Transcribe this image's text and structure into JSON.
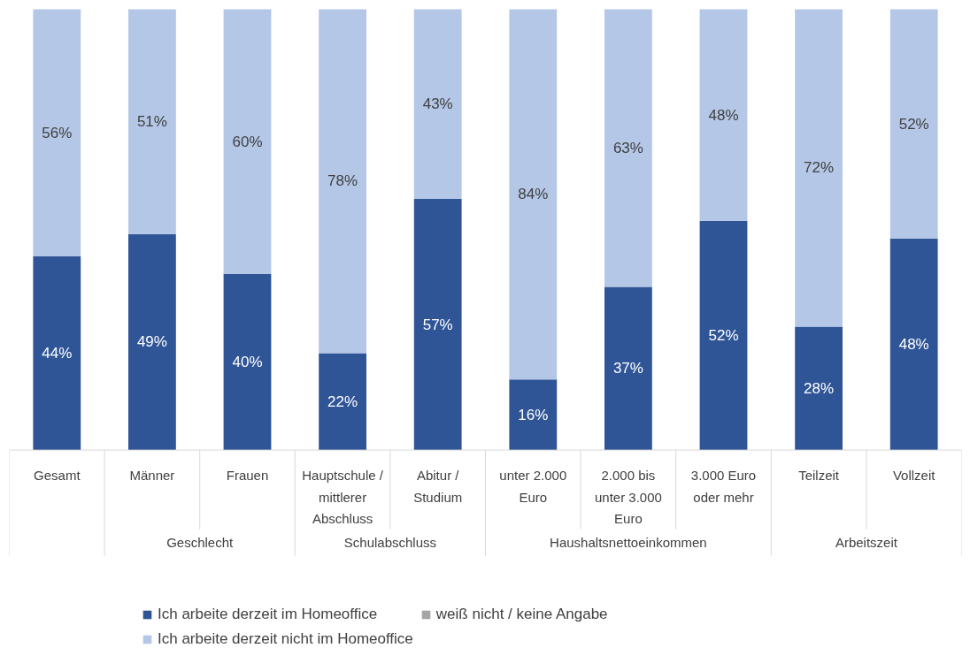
{
  "chart_data": {
    "type": "bar",
    "stacked": true,
    "legend": "bottom",
    "categories": [
      "Gesamt",
      "Männer",
      "Frauen",
      "Hauptschule / mittlerer Abschluss",
      "Abitur / Studium",
      "unter 2.000 Euro",
      "2.000 bis unter 3.000 Euro",
      "3.000 Euro oder mehr",
      "Teilzeit",
      "Vollzeit"
    ],
    "series": [
      {
        "name": "Ich arbeite derzeit im Homeoffice",
        "color": "#2f5597",
        "values": [
          44,
          49,
          40,
          22,
          57,
          16,
          37,
          52,
          28,
          48
        ],
        "value_labels": [
          "44%",
          "49%",
          "40%",
          "22%",
          "57%",
          "16%",
          "37%",
          "52%",
          "28%",
          "48%"
        ]
      },
      {
        "name": "Ich arbeite derzeit nicht im Homeoffice",
        "color": "#b4c7e7",
        "values": [
          56,
          51,
          60,
          78,
          43,
          84,
          63,
          48,
          72,
          52
        ],
        "value_labels": [
          "56%",
          "51%",
          "60%",
          "78%",
          "43%",
          "84%",
          "63%",
          "48%",
          "72%",
          "52%"
        ]
      },
      {
        "name": "weiß nicht / keine Angabe",
        "color": "#a5a5a5",
        "values": [
          0,
          0,
          0,
          0,
          0,
          0,
          0,
          0,
          0,
          0
        ],
        "value_labels": [
          null,
          null,
          null,
          null,
          null,
          null,
          null,
          null,
          null,
          null
        ]
      }
    ],
    "annotations": [
      "Geschlecht",
      "Schulabschluss",
      "Haushaltsnettoeinkommen",
      "Arbeitszeit"
    ]
  }
}
